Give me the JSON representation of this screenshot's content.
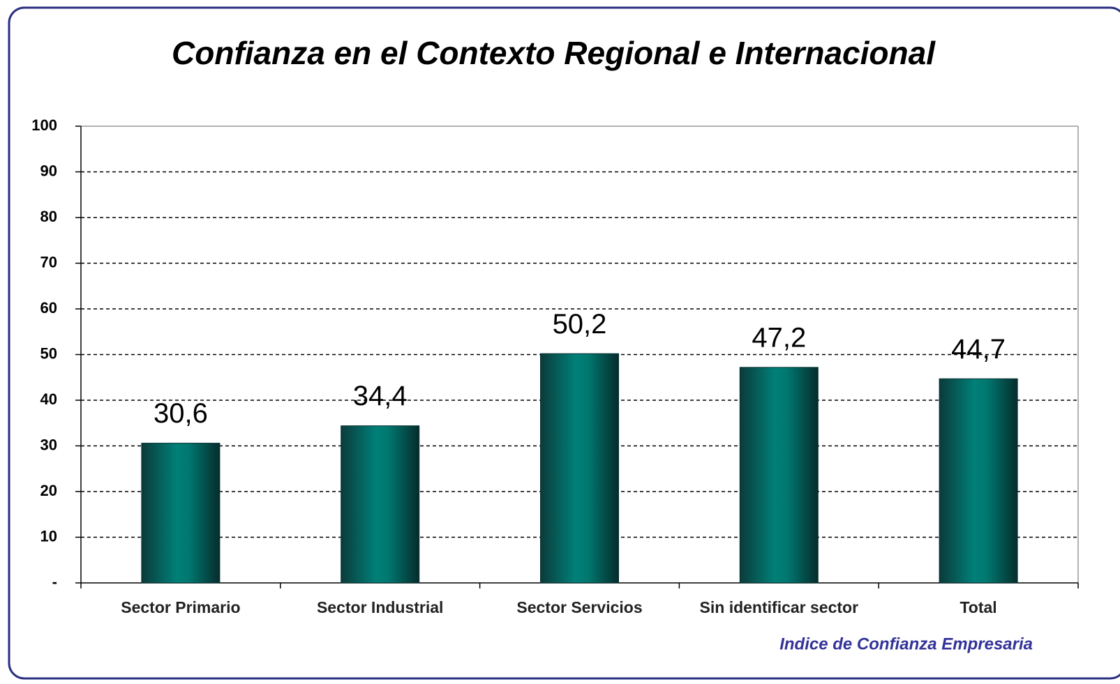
{
  "chart_data": {
    "type": "bar",
    "title": "Confianza en el Contexto Regional e Internacional",
    "categories": [
      "Sector Primario",
      "Sector Industrial",
      "Sector Servicios",
      "Sin identificar sector",
      "Total"
    ],
    "values": [
      30.6,
      34.4,
      50.2,
      47.2,
      44.7
    ],
    "value_labels": [
      "30,6",
      "34,4",
      "50,2",
      "47,2",
      "44,7"
    ],
    "color": "#008078",
    "ylim": [
      0,
      100
    ],
    "yticks": [
      {
        "value": 0,
        "label": "-"
      },
      10,
      20,
      30,
      40,
      50,
      60,
      70,
      80,
      90,
      100
    ],
    "grid": true,
    "annotation": "Indice de Confianza Empresaria"
  }
}
